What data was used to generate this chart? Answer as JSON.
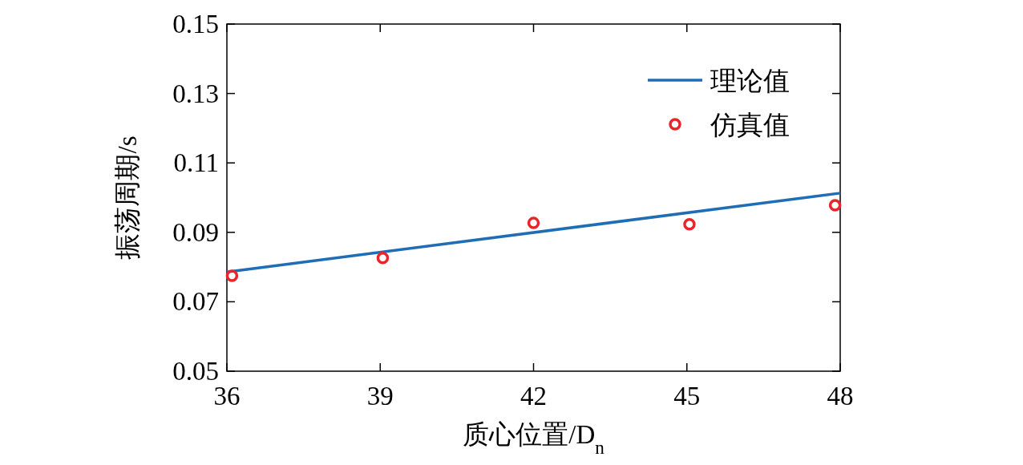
{
  "chart_data": {
    "type": "line",
    "xlabel": "质心位置/D$_{n}$",
    "ylabel": "振荡周期/s",
    "xlim": [
      36,
      48
    ],
    "xticks": [
      36,
      39,
      42,
      45,
      48
    ],
    "ylim": [
      0.05,
      0.15
    ],
    "yticks": [
      {
        "value": 0.05,
        "label": "0.05"
      },
      {
        "value": 0.07,
        "label": "0.07"
      },
      {
        "value": 0.09,
        "label": "0.09"
      },
      {
        "value": 0.11,
        "label": "0.11"
      },
      {
        "value": 0.13,
        "label": "0.13"
      },
      {
        "value": 0.15,
        "label": "0.15"
      }
    ],
    "legend": "top right",
    "grid": false,
    "series": [
      {
        "name": "理论值",
        "type": "line",
        "color": "#1f6db5",
        "x": [
          36,
          48
        ],
        "values": [
          0.0786,
          0.1013
        ],
        "marker": "none",
        "line_style": "solid"
      },
      {
        "name": "仿真值",
        "type": "scatter",
        "color": "#e8262a",
        "x": [
          36.1,
          39.05,
          42,
          45.05,
          47.9
        ],
        "values": [
          0.0775,
          0.0826,
          0.0927,
          0.0923,
          0.0978
        ],
        "marker": "circle"
      }
    ]
  }
}
